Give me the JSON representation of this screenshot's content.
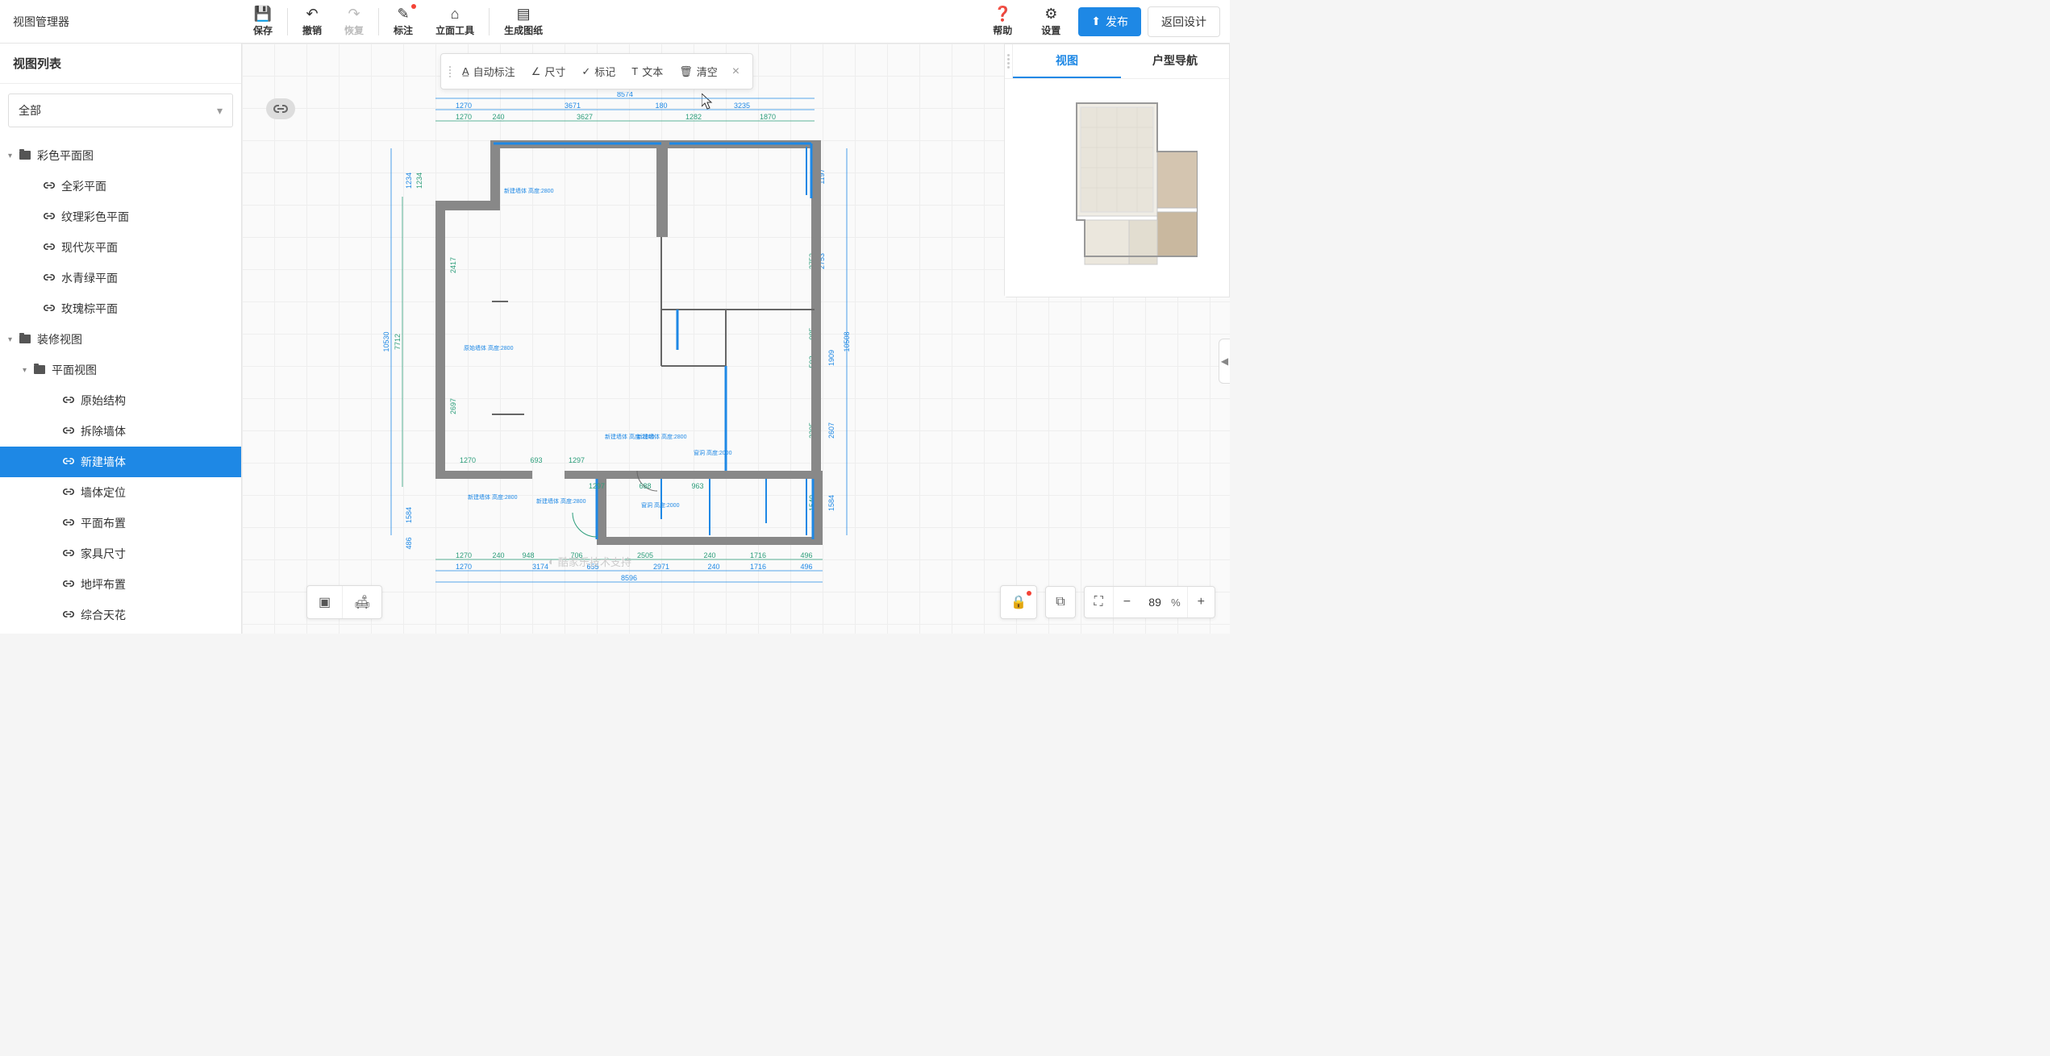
{
  "app": {
    "title": "视图管理器"
  },
  "toolbar": {
    "save": "保存",
    "undo": "撤销",
    "redo": "恢复",
    "annotate": "标注",
    "elevation": "立面工具",
    "generate": "生成图纸",
    "help": "帮助",
    "settings": "设置",
    "publish": "发布",
    "return": "返回设计"
  },
  "sidebar": {
    "header": "视图列表",
    "filter": "全部",
    "tree": [
      {
        "level": 0,
        "type": "folder",
        "label": "彩色平面图",
        "expanded": true
      },
      {
        "level": 2,
        "type": "link",
        "label": "全彩平面"
      },
      {
        "level": 2,
        "type": "link",
        "label": "纹理彩色平面"
      },
      {
        "level": 2,
        "type": "link",
        "label": "现代灰平面"
      },
      {
        "level": 2,
        "type": "link",
        "label": "水青绿平面"
      },
      {
        "level": 2,
        "type": "link",
        "label": "玫瑰棕平面"
      },
      {
        "level": 0,
        "type": "folder",
        "label": "装修视图",
        "expanded": true
      },
      {
        "level": 1,
        "type": "folder",
        "label": "平面视图",
        "expanded": true
      },
      {
        "level": 3,
        "type": "link",
        "label": "原始结构"
      },
      {
        "level": 3,
        "type": "link",
        "label": "拆除墙体"
      },
      {
        "level": 3,
        "type": "link",
        "label": "新建墙体",
        "selected": true
      },
      {
        "level": 3,
        "type": "link",
        "label": "墙体定位"
      },
      {
        "level": 3,
        "type": "link",
        "label": "平面布置"
      },
      {
        "level": 3,
        "type": "link",
        "label": "家具尺寸"
      },
      {
        "level": 3,
        "type": "link",
        "label": "地坪布置"
      },
      {
        "level": 3,
        "type": "link",
        "label": "综合天花"
      }
    ]
  },
  "anno_toolbar": {
    "auto": "自动标注",
    "dim": "尺寸",
    "mark": "标记",
    "text": "文本",
    "clear": "清空"
  },
  "right_panel": {
    "tab_view": "视图",
    "tab_nav": "户型导航"
  },
  "zoom": {
    "value": "89",
    "unit": "%"
  },
  "watermark": "酷家乐技术支持",
  "dimensions": {
    "top_total": "8574",
    "top_row1": [
      "1270",
      "3671",
      "180",
      "3235"
    ],
    "top_row2": [
      "1270",
      "240",
      "3627",
      "1282",
      "1870"
    ],
    "bot_row1": [
      "1270",
      "240",
      "948",
      "706",
      "2505",
      "240",
      "1716",
      "496"
    ],
    "bot_row2": [
      "1270",
      "3174",
      "655",
      "2971",
      "240",
      "1716",
      "496"
    ],
    "bot_total": "8596",
    "left_total": "10530",
    "left_inner": "7712",
    "left_seg": [
      "1234",
      "1234",
      "2417",
      "2697",
      "1584",
      "486"
    ],
    "right_total": "10508",
    "right_seg": [
      "1197",
      "2753",
      "2753",
      "985",
      "592",
      "1909",
      "2205",
      "2607",
      "1540",
      "1584",
      "441",
      "931"
    ],
    "mid": [
      "1270",
      "693",
      "1297",
      "688",
      "963"
    ]
  },
  "annotations": {
    "a1": "原始墙体\n高度:2800",
    "a2": "新建墙体\n高度:2800",
    "a3": "新建墙体\n高度:2800",
    "a4": "新建墙体\n高度:2800",
    "a5": "窗洞\n高度:2000",
    "a6": "新建墙体\n高度:2800",
    "a7": "新建墙体\n高度:2800",
    "a8": "窗洞\n高度:2000"
  },
  "colors": {
    "primary": "#1e88e5",
    "dim_green": "#2b9d7a",
    "wall": "#888888",
    "grid": "#eeeeee",
    "bg": "#fafafa"
  }
}
